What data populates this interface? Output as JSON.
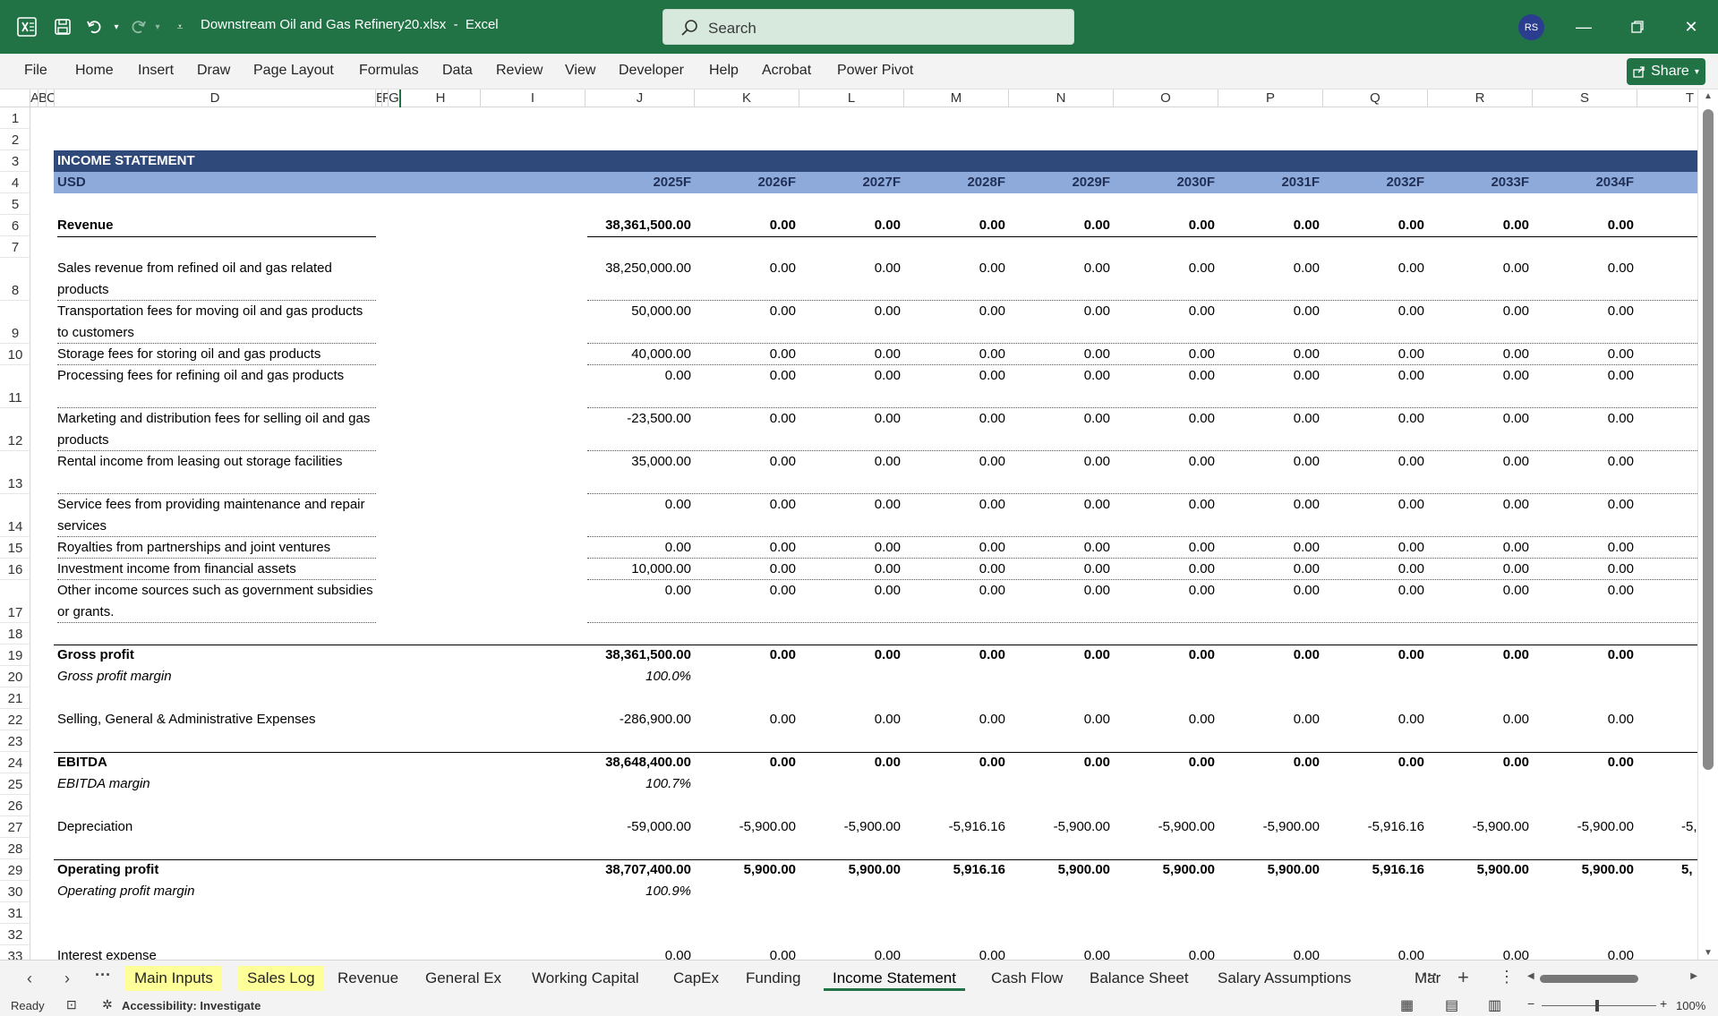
{
  "titlebar": {
    "filename": "Downstream Oil and Gas Refinery20.xlsx  -  Excel",
    "search_placeholder": "Search",
    "user_initials": "RS"
  },
  "ribbon": {
    "tabs": [
      "File",
      "Home",
      "Insert",
      "Draw",
      "Page Layout",
      "Formulas",
      "Data",
      "Review",
      "View",
      "Developer",
      "Help",
      "Acrobat",
      "Power Pivot"
    ],
    "share_label": "Share"
  },
  "columns": [
    "A",
    "B",
    "C",
    "D",
    "E",
    "F",
    "G",
    "H",
    "I",
    "J",
    "K",
    "L",
    "M",
    "N",
    "O",
    "P",
    "Q",
    "R",
    "S",
    "T"
  ],
  "sheet": {
    "title": "INCOME STATEMENT",
    "currency": "USD",
    "years": [
      "2025F",
      "2026F",
      "2027F",
      "2028F",
      "2029F",
      "2030F",
      "2031F",
      "2032F",
      "2033F",
      "2034F"
    ],
    "rows": [
      {
        "r": 6,
        "label": "Revenue",
        "bold": true,
        "vals": [
          "38,361,500.00",
          "0.00",
          "0.00",
          "0.00",
          "0.00",
          "0.00",
          "0.00",
          "0.00",
          "0.00",
          "0.00"
        ]
      },
      {
        "r": 8,
        "label": "Sales revenue from refined oil and gas related products",
        "vals": [
          "38,250,000.00",
          "0.00",
          "0.00",
          "0.00",
          "0.00",
          "0.00",
          "0.00",
          "0.00",
          "0.00",
          "0.00"
        ]
      },
      {
        "r": 9,
        "label": "Transportation fees for moving oil and gas products to customers",
        "vals": [
          "50,000.00",
          "0.00",
          "0.00",
          "0.00",
          "0.00",
          "0.00",
          "0.00",
          "0.00",
          "0.00",
          "0.00"
        ]
      },
      {
        "r": 10,
        "label": "Storage fees for storing oil and gas products",
        "vals": [
          "40,000.00",
          "0.00",
          "0.00",
          "0.00",
          "0.00",
          "0.00",
          "0.00",
          "0.00",
          "0.00",
          "0.00"
        ]
      },
      {
        "r": 11,
        "label": "Processing fees for refining oil and gas products",
        "vals": [
          "0.00",
          "0.00",
          "0.00",
          "0.00",
          "0.00",
          "0.00",
          "0.00",
          "0.00",
          "0.00",
          "0.00"
        ]
      },
      {
        "r": 12,
        "label": "Marketing and distribution fees for selling oil and gas products",
        "vals": [
          "-23,500.00",
          "0.00",
          "0.00",
          "0.00",
          "0.00",
          "0.00",
          "0.00",
          "0.00",
          "0.00",
          "0.00"
        ]
      },
      {
        "r": 13,
        "label": "Rental income from leasing out storage facilities",
        "vals": [
          "35,000.00",
          "0.00",
          "0.00",
          "0.00",
          "0.00",
          "0.00",
          "0.00",
          "0.00",
          "0.00",
          "0.00"
        ]
      },
      {
        "r": 14,
        "label": "Service fees from providing maintenance and repair services",
        "vals": [
          "0.00",
          "0.00",
          "0.00",
          "0.00",
          "0.00",
          "0.00",
          "0.00",
          "0.00",
          "0.00",
          "0.00"
        ]
      },
      {
        "r": 15,
        "label": "Royalties from partnerships and joint ventures",
        "vals": [
          "0.00",
          "0.00",
          "0.00",
          "0.00",
          "0.00",
          "0.00",
          "0.00",
          "0.00",
          "0.00",
          "0.00"
        ]
      },
      {
        "r": 16,
        "label": "Investment income from financial assets",
        "vals": [
          "10,000.00",
          "0.00",
          "0.00",
          "0.00",
          "0.00",
          "0.00",
          "0.00",
          "0.00",
          "0.00",
          "0.00"
        ]
      },
      {
        "r": 17,
        "label": "Other income sources such as government subsidies or grants.",
        "vals": [
          "0.00",
          "0.00",
          "0.00",
          "0.00",
          "0.00",
          "0.00",
          "0.00",
          "0.00",
          "0.00",
          "0.00"
        ]
      },
      {
        "r": 19,
        "label": "Gross profit",
        "bold": true,
        "vals": [
          "38,361,500.00",
          "0.00",
          "0.00",
          "0.00",
          "0.00",
          "0.00",
          "0.00",
          "0.00",
          "0.00",
          "0.00"
        ]
      },
      {
        "r": 20,
        "label": "Gross profit margin",
        "italic": true,
        "vals": [
          "100.0%"
        ]
      },
      {
        "r": 22,
        "label": "Selling, General & Administrative Expenses",
        "vals": [
          "-286,900.00",
          "0.00",
          "0.00",
          "0.00",
          "0.00",
          "0.00",
          "0.00",
          "0.00",
          "0.00",
          "0.00"
        ]
      },
      {
        "r": 24,
        "label": "EBITDA",
        "bold": true,
        "vals": [
          "38,648,400.00",
          "0.00",
          "0.00",
          "0.00",
          "0.00",
          "0.00",
          "0.00",
          "0.00",
          "0.00",
          "0.00"
        ]
      },
      {
        "r": 25,
        "label": "EBITDA margin",
        "italic": true,
        "vals": [
          "100.7%"
        ]
      },
      {
        "r": 27,
        "label": "Depreciation",
        "vals": [
          "-59,000.00",
          "-5,900.00",
          "-5,900.00",
          "-5,916.16",
          "-5,900.00",
          "-5,900.00",
          "-5,900.00",
          "-5,916.16",
          "-5,900.00",
          "-5,900.00"
        ],
        "overflow": "-5,"
      },
      {
        "r": 29,
        "label": "Operating profit",
        "bold": true,
        "vals": [
          "38,707,400.00",
          "5,900.00",
          "5,900.00",
          "5,916.16",
          "5,900.00",
          "5,900.00",
          "5,900.00",
          "5,916.16",
          "5,900.00",
          "5,900.00"
        ],
        "overflow": "5,"
      },
      {
        "r": 30,
        "label": "Operating profit margin",
        "italic": true,
        "vals": [
          "100.9%"
        ]
      },
      {
        "r": 33,
        "label": "Interest expense",
        "vals": [
          "0.00",
          "0.00",
          "0.00",
          "0.00",
          "0.00",
          "0.00",
          "0.00",
          "0.00",
          "0.00",
          "0.00"
        ]
      }
    ]
  },
  "sheet_tabs": [
    "Main Inputs",
    "Sales Log",
    "Revenue",
    "General Ex",
    "Working Capital",
    "CapEx",
    "Funding",
    "Income Statement",
    "Cash Flow",
    "Balance Sheet",
    "Salary Assumptions",
    "Mar"
  ],
  "active_sheet": "Income Statement",
  "highlighted_sheets": [
    "Main Inputs",
    "Sales Log"
  ],
  "status": {
    "ready": "Ready",
    "accessibility": "Accessibility: Investigate",
    "zoom": "100%"
  },
  "colors": {
    "excel_green": "#217346",
    "header_dark": "#2f4a7a",
    "header_light": "#8eaadb",
    "tab_yellow": "#ffff99"
  }
}
